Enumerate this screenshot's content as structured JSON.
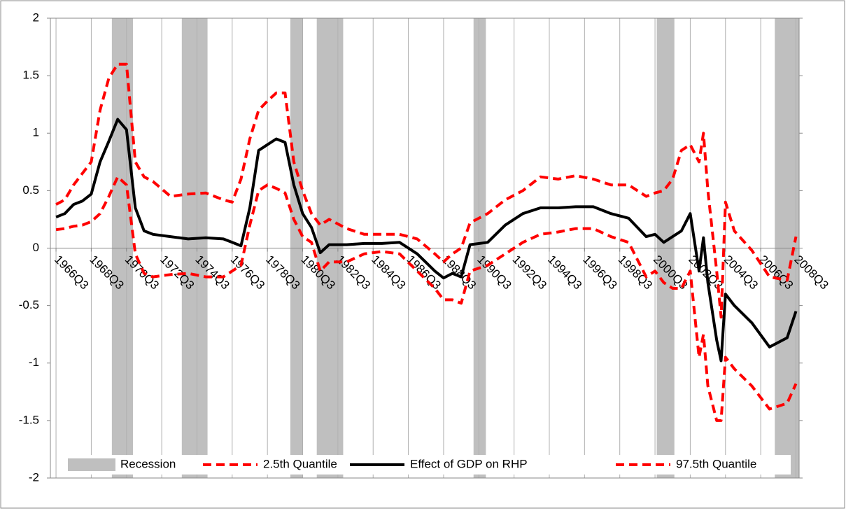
{
  "chart_data": {
    "type": "line",
    "x": [
      1966.5,
      1967,
      1967.5,
      1968,
      1968.5,
      1969,
      1969.5,
      1970,
      1970.5,
      1971,
      1971.5,
      1972,
      1973,
      1974,
      1975,
      1976,
      1976.5,
      1977,
      1977.5,
      1978,
      1978.5,
      1979,
      1979.5,
      1980,
      1980.5,
      1981,
      1981.5,
      1982,
      1983,
      1984,
      1985,
      1986,
      1987,
      1988,
      1988.5,
      1989,
      1989.5,
      1990,
      1991,
      1992,
      1993,
      1994,
      1995,
      1996,
      1997,
      1998,
      1999,
      2000,
      2000.5,
      2001,
      2001.5,
      2002,
      2002.5,
      2003,
      2003.25,
      2003.5,
      2004,
      2004.25,
      2004.5,
      2005,
      2006,
      2007,
      2008,
      2008.5
    ],
    "series": [
      {
        "name": "2.5th Quantile",
        "color": "#ff0000",
        "dashed": true,
        "values": [
          0.16,
          0.17,
          0.19,
          0.2,
          0.23,
          0.3,
          0.45,
          0.62,
          0.55,
          -0.05,
          -0.22,
          -0.25,
          -0.23,
          -0.22,
          -0.25,
          -0.25,
          -0.2,
          -0.15,
          0.2,
          0.5,
          0.55,
          0.52,
          0.48,
          0.25,
          0.1,
          0.05,
          -0.2,
          -0.12,
          -0.12,
          -0.05,
          -0.03,
          -0.05,
          -0.2,
          -0.35,
          -0.45,
          -0.45,
          -0.48,
          -0.2,
          -0.15,
          -0.05,
          0.05,
          0.12,
          0.14,
          0.17,
          0.17,
          0.1,
          0.05,
          -0.25,
          -0.2,
          -0.3,
          -0.35,
          -0.35,
          -0.2,
          -0.95,
          -0.75,
          -1.2,
          -1.5,
          -1.5,
          -0.95,
          -1.05,
          -1.2,
          -1.4,
          -1.35,
          -1.18
        ]
      },
      {
        "name": "Effect of GDP on RHP",
        "color": "#000000",
        "dashed": false,
        "values": [
          0.27,
          0.3,
          0.38,
          0.41,
          0.47,
          0.75,
          0.93,
          1.12,
          1.03,
          0.35,
          0.15,
          0.12,
          0.1,
          0.08,
          0.09,
          0.08,
          0.05,
          0.02,
          0.35,
          0.85,
          0.9,
          0.95,
          0.92,
          0.55,
          0.3,
          0.18,
          -0.04,
          0.03,
          0.03,
          0.04,
          0.04,
          0.05,
          -0.05,
          -0.2,
          -0.26,
          -0.22,
          -0.25,
          0.03,
          0.05,
          0.2,
          0.3,
          0.35,
          0.35,
          0.36,
          0.36,
          0.3,
          0.26,
          0.1,
          0.12,
          0.05,
          0.1,
          0.15,
          0.3,
          -0.2,
          0.09,
          -0.3,
          -0.8,
          -0.98,
          -0.4,
          -0.5,
          -0.65,
          -0.86,
          -0.78,
          -0.55
        ]
      },
      {
        "name": "97.5th Quantile",
        "color": "#ff0000",
        "dashed": true,
        "values": [
          0.38,
          0.42,
          0.55,
          0.65,
          0.75,
          1.2,
          1.48,
          1.6,
          1.6,
          0.75,
          0.62,
          0.58,
          0.45,
          0.47,
          0.48,
          0.42,
          0.4,
          0.6,
          0.95,
          1.2,
          1.28,
          1.35,
          1.35,
          0.75,
          0.5,
          0.3,
          0.2,
          0.25,
          0.17,
          0.12,
          0.12,
          0.12,
          0.08,
          -0.05,
          -0.12,
          -0.05,
          0,
          0.22,
          0.3,
          0.42,
          0.5,
          0.62,
          0.6,
          0.63,
          0.6,
          0.55,
          0.55,
          0.45,
          0.48,
          0.5,
          0.6,
          0.85,
          0.9,
          0.75,
          1.0,
          0.5,
          -0.2,
          -0.6,
          0.4,
          0.15,
          -0.02,
          -0.25,
          -0.28,
          0.1
        ]
      }
    ],
    "recession": {
      "name": "Recession",
      "color": "#bfbfbf",
      "periods": [
        [
          1969.67,
          1970.87
        ],
        [
          1973.64,
          1975.1
        ],
        [
          1979.8,
          1980.5
        ],
        [
          1981.3,
          1982.8
        ],
        [
          1990.2,
          1990.9
        ],
        [
          2000.6,
          2001.6
        ],
        [
          2007.3,
          2008.68
        ]
      ]
    },
    "xlim": [
      1966.18,
      2008.68
    ],
    "xticks": [
      {
        "value": 1966.5,
        "label": "1966Q3"
      },
      {
        "value": 1968.5,
        "label": "1968Q3"
      },
      {
        "value": 1970.5,
        "label": "1970Q3"
      },
      {
        "value": 1972.5,
        "label": "1972Q3"
      },
      {
        "value": 1974.5,
        "label": "1974Q3"
      },
      {
        "value": 1976.5,
        "label": "1976Q3"
      },
      {
        "value": 1978.5,
        "label": "1978Q3"
      },
      {
        "value": 1980.5,
        "label": "1980Q3"
      },
      {
        "value": 1982.5,
        "label": "1982Q3"
      },
      {
        "value": 1984.5,
        "label": "1984Q3"
      },
      {
        "value": 1986.5,
        "label": "1986Q3"
      },
      {
        "value": 1988.5,
        "label": "1988Q3"
      },
      {
        "value": 1990.5,
        "label": "1990Q3"
      },
      {
        "value": 1992.5,
        "label": "1992Q3"
      },
      {
        "value": 1994.5,
        "label": "1994Q3"
      },
      {
        "value": 1996.5,
        "label": "1996Q3"
      },
      {
        "value": 1998.5,
        "label": "1998Q3"
      },
      {
        "value": 2000.5,
        "label": "2000Q3"
      },
      {
        "value": 2002.5,
        "label": "2002Q3"
      },
      {
        "value": 2004.5,
        "label": "2004Q3"
      },
      {
        "value": 2006.5,
        "label": "2006Q3"
      },
      {
        "value": 2008.5,
        "label": "2008Q3"
      }
    ],
    "ylim": [
      -2,
      2
    ],
    "yticks": [
      -2,
      -1.5,
      -1,
      -0.5,
      0,
      0.5,
      1,
      1.5,
      2
    ],
    "grid": true
  }
}
